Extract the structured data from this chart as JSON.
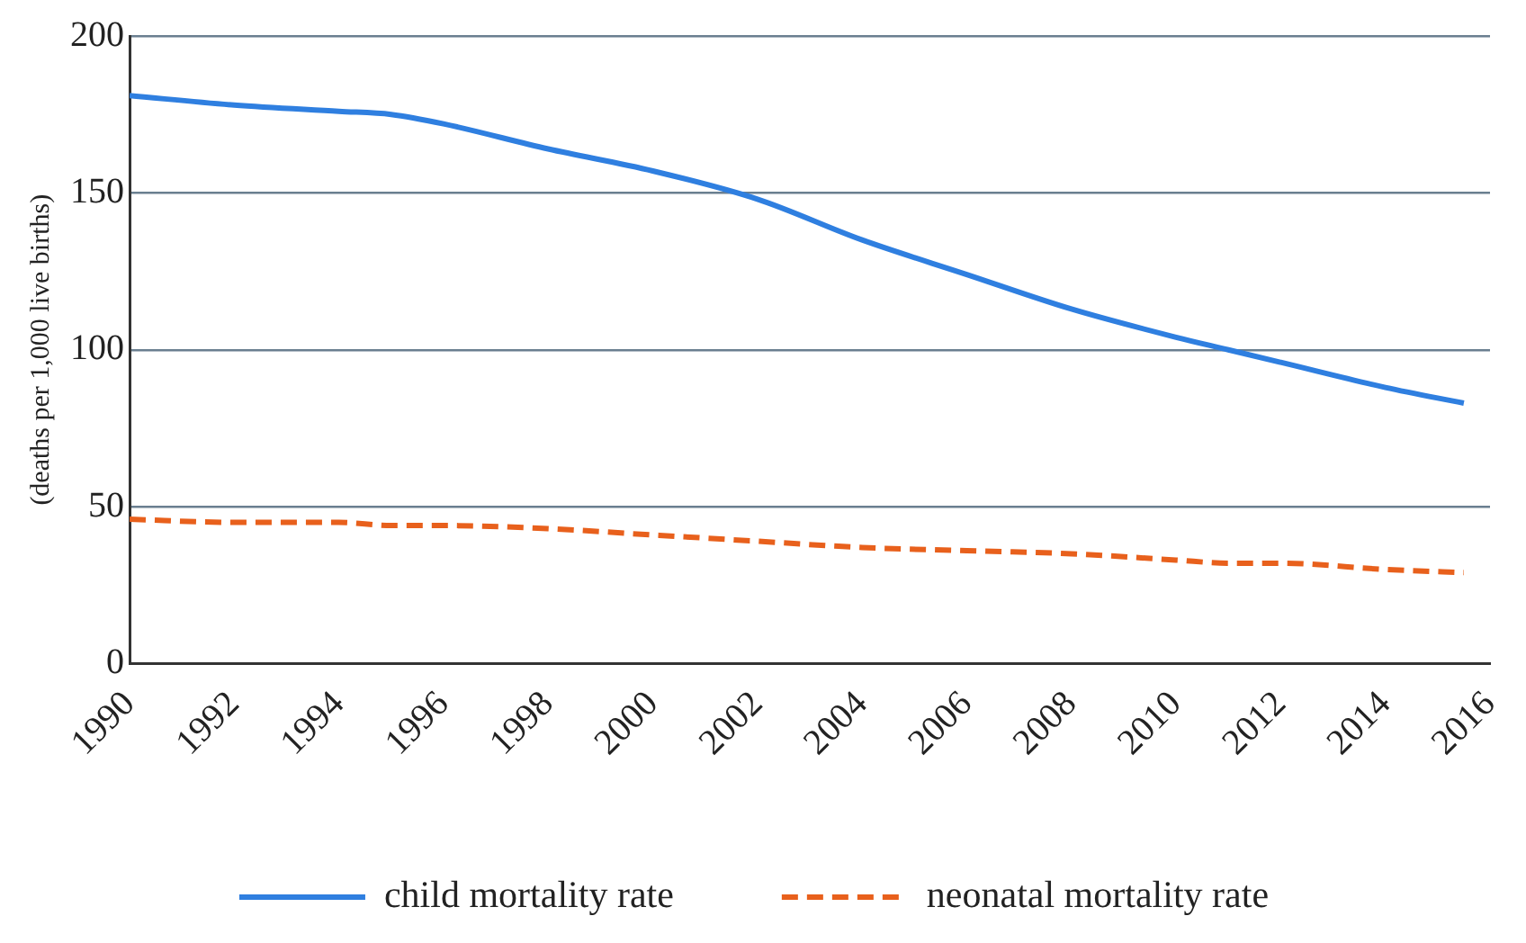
{
  "chart_data": {
    "type": "line",
    "ylabel": "(deaths per 1,000 live births)",
    "x": [
      1990,
      1992,
      1994,
      1995,
      1996,
      1998,
      2000,
      2002,
      2004,
      2006,
      2008,
      2010,
      2011,
      2012,
      2014,
      2015.5
    ],
    "series": [
      {
        "name": "child mortality rate",
        "color": "#2f7fe0",
        "line_style": "solid",
        "values": [
          181,
          178,
          176,
          175,
          172,
          164,
          157,
          148,
          135,
          124,
          113,
          104,
          100,
          96,
          88,
          83
        ]
      },
      {
        "name": "neonatal mortality rate",
        "color": "#e8601c",
        "line_style": "dashed",
        "values": [
          46,
          45,
          45,
          44,
          44,
          43,
          41,
          39,
          37,
          36,
          35,
          33,
          32,
          32,
          30,
          29
        ]
      }
    ],
    "xlim": [
      1990,
      2016
    ],
    "xticks": [
      1990,
      1992,
      1994,
      1996,
      1998,
      2000,
      2002,
      2004,
      2006,
      2008,
      2010,
      2012,
      2014,
      2016
    ],
    "ylim": [
      0,
      200
    ],
    "yticks": [
      0,
      50,
      100,
      150,
      200
    ],
    "grid": "y",
    "legend": "bottom",
    "marker": "none"
  }
}
